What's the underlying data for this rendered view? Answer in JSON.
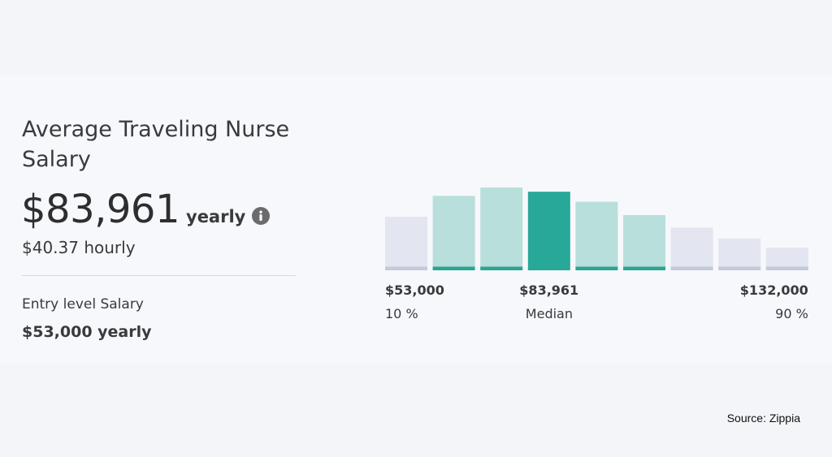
{
  "summary": {
    "title": "Average Traveling Nurse Salary",
    "average_amount": "$83,961",
    "average_unit": "yearly",
    "hourly": "$40.37 hourly",
    "entry_label": "Entry level Salary",
    "entry_value": "$53,000 yearly",
    "info_icon": "info-icon"
  },
  "chart_data": {
    "type": "bar",
    "title": "",
    "xlabel": "",
    "ylabel": "",
    "categories": [
      "1",
      "2",
      "3",
      "4",
      "5",
      "6",
      "7",
      "8",
      "9"
    ],
    "values": [
      64,
      89,
      99,
      94,
      82,
      66,
      51,
      38,
      27
    ],
    "ylim": [
      0,
      100
    ],
    "bar_groups": [
      "outer",
      "inner",
      "inner",
      "median",
      "inner",
      "inner",
      "outer",
      "outer",
      "outer"
    ],
    "colors": {
      "outer": "#e3e5f0",
      "inner": "#b8dfdb",
      "median": "#27a898",
      "outer_base": "#c3cada",
      "inner_base": "#2ba594"
    },
    "labels": [
      {
        "value": "$53,000",
        "sub": "10 %"
      },
      {
        "value": "$83,961",
        "sub": "Median"
      },
      {
        "value": "$132,000",
        "sub": "90 %"
      }
    ],
    "grid": false,
    "legend": "none"
  },
  "footer": {
    "source": "Source: Zippia"
  }
}
